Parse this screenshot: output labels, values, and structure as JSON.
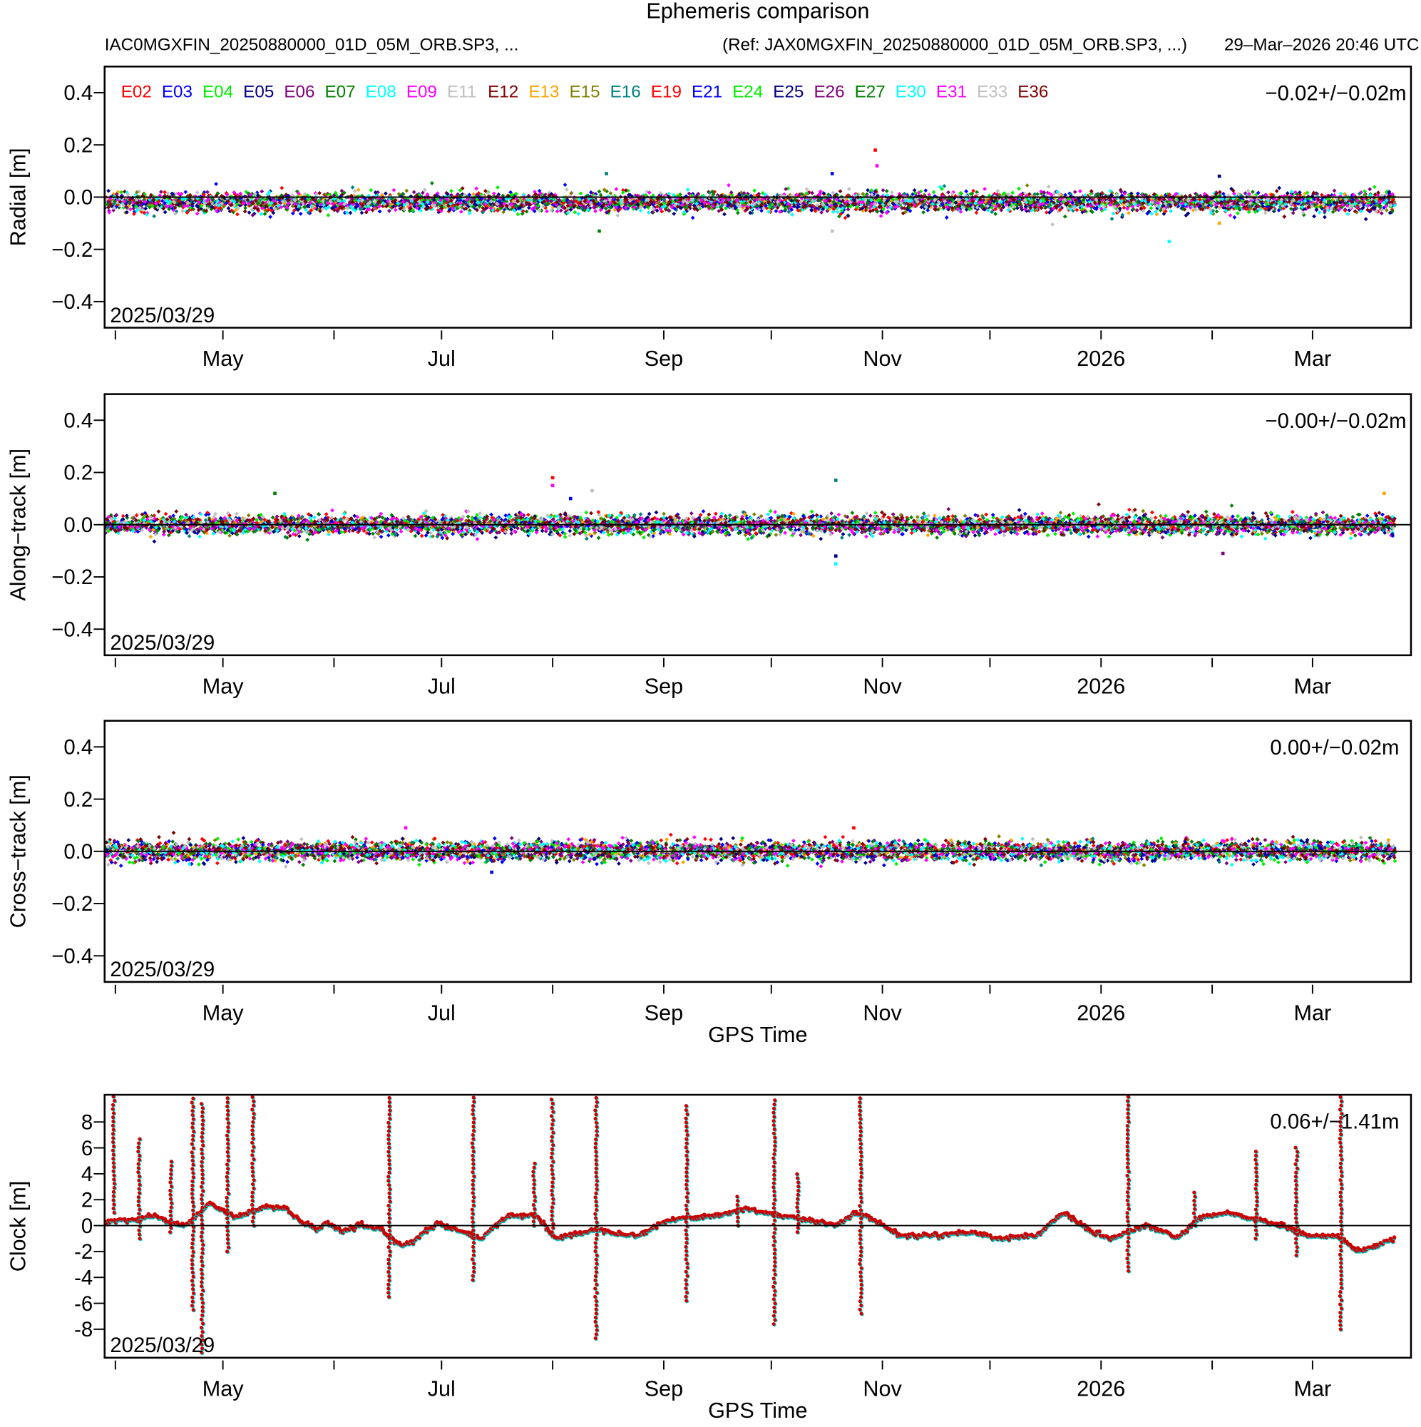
{
  "header": {
    "title": "Ephemeris comparison",
    "files": "IAC0MGXFIN_20250880000_01D_05M_ORB.SP3, ...",
    "ref": "(Ref: JAX0MGXFIN_20250880000_01D_05M_ORB.SP3, ...)",
    "timestamp": "29–Mar–2026 20:46 UTC"
  },
  "chart_data": {
    "type": "scatter",
    "title": "Ephemeris comparison",
    "start_date": "2025/03/29",
    "x_unit": "days since 2025/03/29",
    "xlim": [
      0,
      364
    ],
    "x_ticks": [
      {
        "day": 3,
        "label": ""
      },
      {
        "day": 33,
        "label": "May"
      },
      {
        "day": 64,
        "label": ""
      },
      {
        "day": 94,
        "label": "Jul"
      },
      {
        "day": 125,
        "label": ""
      },
      {
        "day": 156,
        "label": "Sep"
      },
      {
        "day": 186,
        "label": ""
      },
      {
        "day": 217,
        "label": "Nov"
      },
      {
        "day": 247,
        "label": ""
      },
      {
        "day": 278,
        "label": "2026"
      },
      {
        "day": 309,
        "label": ""
      },
      {
        "day": 337,
        "label": "Mar"
      }
    ],
    "legend": [
      {
        "name": "E02",
        "color": "#ff0000"
      },
      {
        "name": "E03",
        "color": "#0000ff"
      },
      {
        "name": "E04",
        "color": "#00ee00"
      },
      {
        "name": "E05",
        "color": "#000080"
      },
      {
        "name": "E06",
        "color": "#800080"
      },
      {
        "name": "E07",
        "color": "#008000"
      },
      {
        "name": "E08",
        "color": "#00ffff"
      },
      {
        "name": "E09",
        "color": "#ff00ff"
      },
      {
        "name": "E11",
        "color": "#c0c0c0"
      },
      {
        "name": "E12",
        "color": "#800000"
      },
      {
        "name": "E13",
        "color": "#ffa500"
      },
      {
        "name": "E15",
        "color": "#808000"
      },
      {
        "name": "E16",
        "color": "#008080"
      },
      {
        "name": "E19",
        "color": "#ff0000"
      },
      {
        "name": "E21",
        "color": "#0000ff"
      },
      {
        "name": "E24",
        "color": "#00ee00"
      },
      {
        "name": "E25",
        "color": "#000080"
      },
      {
        "name": "E26",
        "color": "#800080"
      },
      {
        "name": "E27",
        "color": "#008000"
      },
      {
        "name": "E30",
        "color": "#00ffff"
      },
      {
        "name": "E31",
        "color": "#ff00ff"
      },
      {
        "name": "E33",
        "color": "#c0c0c0"
      },
      {
        "name": "E36",
        "color": "#800000"
      }
    ],
    "legend_placement": "top-left",
    "panels": [
      {
        "id": "radial",
        "ylabel": "Radial [m]",
        "ylim": [
          -0.5,
          0.5
        ],
        "mean": -0.02,
        "std": 0.02,
        "stats": "−0.02+/−0.02m",
        "date_label": "2025/03/29",
        "xlabel": "",
        "y_ticks": [
          {
            "v": 0.4,
            "label": "0.4"
          },
          {
            "v": 0.2,
            "label": "0.2"
          },
          {
            "v": 0,
            "label": "0.0"
          },
          {
            "v": -0.2,
            "label": "−0.2"
          },
          {
            "v": -0.4,
            "label": "−0.4"
          }
        ],
        "outliers": [
          {
            "day": 215,
            "v": 0.18
          },
          {
            "day": 215.5,
            "v": 0.12
          },
          {
            "day": 203,
            "v": 0.09
          },
          {
            "day": 203,
            "v": -0.13
          },
          {
            "day": 138,
            "v": -0.13
          },
          {
            "day": 140,
            "v": 0.09
          },
          {
            "day": 297,
            "v": -0.17
          },
          {
            "day": 311,
            "v": 0.08
          },
          {
            "day": 311,
            "v": -0.1
          }
        ]
      },
      {
        "id": "along",
        "ylabel": "Along−track [m]",
        "ylim": [
          -0.5,
          0.5
        ],
        "mean": 0.0,
        "std": 0.02,
        "stats": "−0.00+/−0.02m",
        "date_label": "2025/03/29",
        "xlabel": "",
        "y_ticks": [
          {
            "v": 0.4,
            "label": "0.4"
          },
          {
            "v": 0.2,
            "label": "0.2"
          },
          {
            "v": 0,
            "label": "0.0"
          },
          {
            "v": -0.2,
            "label": "−0.2"
          },
          {
            "v": -0.4,
            "label": "−0.4"
          }
        ],
        "outliers": [
          {
            "day": 125,
            "v": 0.18
          },
          {
            "day": 125,
            "v": 0.15
          },
          {
            "day": 130,
            "v": 0.1
          },
          {
            "day": 136,
            "v": 0.13
          },
          {
            "day": 47.5,
            "v": 0.12
          },
          {
            "day": 204,
            "v": 0.17
          },
          {
            "day": 204,
            "v": -0.15
          },
          {
            "day": 204,
            "v": -0.12
          },
          {
            "day": 357,
            "v": 0.12
          },
          {
            "day": 312,
            "v": -0.11
          }
        ]
      },
      {
        "id": "cross",
        "ylabel": "Cross−track [m]",
        "ylim": [
          -0.5,
          0.5
        ],
        "mean": 0.0,
        "std": 0.02,
        "stats": "0.00+/−0.02m",
        "date_label": "2025/03/29",
        "xlabel": "GPS Time",
        "y_ticks": [
          {
            "v": 0.4,
            "label": "0.4"
          },
          {
            "v": 0.2,
            "label": "0.2"
          },
          {
            "v": 0,
            "label": "0.0"
          },
          {
            "v": -0.2,
            "label": "−0.2"
          },
          {
            "v": -0.4,
            "label": "−0.4"
          }
        ],
        "outliers": [
          {
            "day": 209,
            "v": 0.09
          },
          {
            "day": 84,
            "v": 0.09
          },
          {
            "day": 108,
            "v": -0.08
          }
        ]
      },
      {
        "id": "clock",
        "ylabel": "Clock [m]",
        "ylim": [
          -10.2,
          10.1
        ],
        "mean": 0.06,
        "std": 1.41,
        "stats": "0.06+/−1.41m",
        "date_label": "2025/03/29",
        "xlabel": "GPS Time",
        "y_ticks": [
          {
            "v": 8,
            "label": "8"
          },
          {
            "v": 6,
            "label": "6"
          },
          {
            "v": 4,
            "label": "4"
          },
          {
            "v": 2,
            "label": "2"
          },
          {
            "v": 0,
            "label": "0"
          },
          {
            "v": -2,
            "label": "-2"
          },
          {
            "v": -4,
            "label": "-4"
          },
          {
            "v": -6,
            "label": "-6"
          },
          {
            "v": -8,
            "label": "-8"
          }
        ],
        "baseline": [
          [
            0,
            0.3
          ],
          [
            8.9,
            0.5
          ],
          [
            14,
            0.8
          ],
          [
            17.8,
            0.3
          ],
          [
            22.8,
            0
          ],
          [
            29.2,
            1.8
          ],
          [
            36.8,
            0.6
          ],
          [
            44.4,
            1.5
          ],
          [
            50.8,
            1.3
          ],
          [
            54.6,
            0.3
          ],
          [
            59.6,
            -0.3
          ],
          [
            62.2,
            0.3
          ],
          [
            66,
            -0.5
          ],
          [
            71.1,
            0
          ],
          [
            77.4,
            -0.3
          ],
          [
            82.5,
            -1.5
          ],
          [
            86.3,
            -1.2
          ],
          [
            92.6,
            0.2
          ],
          [
            97.7,
            -0.3
          ],
          [
            105.3,
            -1
          ],
          [
            109.1,
            0
          ],
          [
            112.9,
            0.8
          ],
          [
            120.6,
            0.8
          ],
          [
            125.6,
            -1
          ],
          [
            133.2,
            -0.5
          ],
          [
            138.3,
            -0.3
          ],
          [
            148.5,
            -0.8
          ],
          [
            156.1,
            0.3
          ],
          [
            161.2,
            0.6
          ],
          [
            171.3,
            0.8
          ],
          [
            178.9,
            1.3
          ],
          [
            186.5,
            0.9
          ],
          [
            194.2,
            0.5
          ],
          [
            204.3,
            0.1
          ],
          [
            209.4,
            1
          ],
          [
            214.5,
            0.5
          ],
          [
            222.1,
            -0.8
          ],
          [
            232.2,
            -0.7
          ],
          [
            242.4,
            -0.5
          ],
          [
            250,
            -1
          ],
          [
            260.2,
            -0.7
          ],
          [
            267.8,
            1
          ],
          [
            275.4,
            -0.5
          ],
          [
            280.5,
            -1
          ],
          [
            290.6,
            0
          ],
          [
            299.5,
            -0.9
          ],
          [
            305.8,
            0.6
          ],
          [
            313.5,
            1
          ],
          [
            321.1,
            0.5
          ],
          [
            328.7,
            0
          ],
          [
            336.3,
            -0.8
          ],
          [
            343.9,
            -0.8
          ],
          [
            350.3,
            -2
          ],
          [
            359.9,
            -1
          ]
        ],
        "spikes": [
          [
            2.5,
            10,
            1
          ],
          [
            9.6,
            7,
            -1
          ],
          [
            18.5,
            5,
            -0.5
          ],
          [
            24.6,
            10,
            -6.5
          ],
          [
            27.2,
            9.5,
            -9.8
          ],
          [
            34.3,
            10,
            -2
          ],
          [
            41.4,
            10,
            0
          ],
          [
            79.4,
            10,
            -5.5
          ],
          [
            102.8,
            10,
            -4.2
          ],
          [
            119.8,
            5,
            0
          ],
          [
            124.9,
            10,
            -0.5
          ],
          [
            137.1,
            10,
            -8.7
          ],
          [
            162.4,
            9.5,
            -5.8
          ],
          [
            176.6,
            2.5,
            0
          ],
          [
            186.8,
            10,
            -7.6
          ],
          [
            193.4,
            4.2,
            -0.5
          ],
          [
            210.9,
            10,
            -6.8
          ],
          [
            285.5,
            10,
            -3.5
          ],
          [
            304.1,
            2.8,
            0
          ],
          [
            321.3,
            6,
            -1
          ],
          [
            332.5,
            6.2,
            -2.3
          ],
          [
            344.9,
            10,
            -8
          ]
        ]
      }
    ]
  }
}
